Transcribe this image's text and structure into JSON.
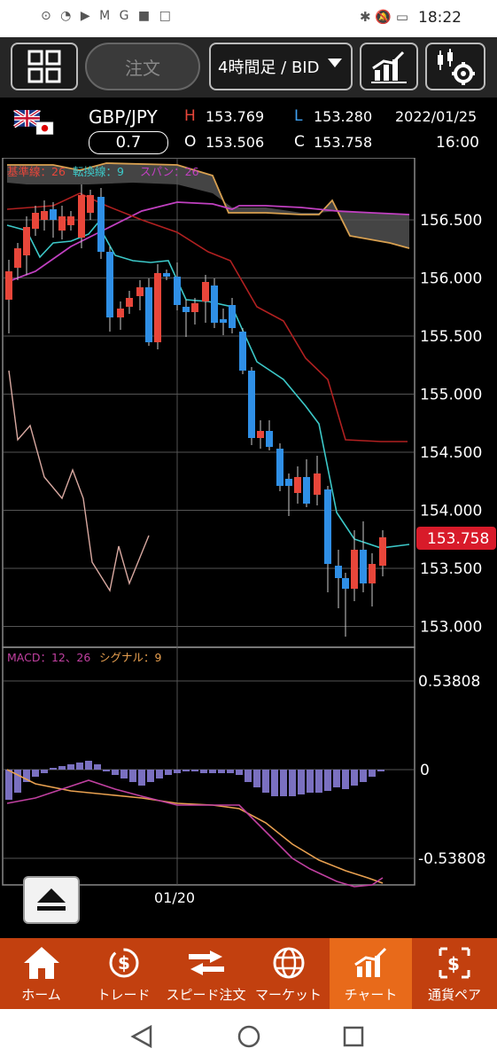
{
  "status": {
    "time": "18:22",
    "left_icons": "⊙ ◔ ▶ M G ■ □"
  },
  "toolbar": {
    "order_label": "注文",
    "period_label": "4時間足 / BID"
  },
  "header": {
    "pair": "GBP/JPY",
    "spread": "0.7",
    "high_label": "H",
    "high": "153.769",
    "low_label": "L",
    "low": "153.280",
    "open_label": "O",
    "open": "153.506",
    "close_label": "C",
    "close": "153.758",
    "date": "2022/01/25",
    "time": "16:00"
  },
  "chart": {
    "ichimoku_legend": {
      "kijun": "基準線：26",
      "tenkan": "転換線：9",
      "span": "スパン：26"
    },
    "price_ticks": [
      "156.500",
      "156.000",
      "155.500",
      "155.000",
      "154.500",
      "154.000",
      "153.500",
      "153.000"
    ],
    "current_price": "153.758",
    "macd_legend": {
      "macd": "MACD：12、26",
      "signal": "シグナル：9"
    },
    "macd_ticks": [
      "0.53808",
      "0",
      "-0.53808"
    ],
    "x_label": "01/20",
    "colors": {
      "up": "#e8463a",
      "down": "#2f8fe6",
      "kijun": "#b02020",
      "tenkan": "#3cc8c8",
      "span_a": "#c040c0",
      "span_b": "#d8a050",
      "chikou": "#d8a8a0",
      "macd": "#c040a0",
      "signal": "#e8a050",
      "hist": "#7a70c0"
    }
  },
  "nav": [
    {
      "label": "ホーム",
      "icon": "home-icon"
    },
    {
      "label": "トレード",
      "icon": "trade-icon"
    },
    {
      "label": "スピード注文",
      "icon": "speed-order-icon"
    },
    {
      "label": "マーケット",
      "icon": "market-icon"
    },
    {
      "label": "チャート",
      "icon": "chart-icon"
    },
    {
      "label": "通貨ペア",
      "icon": "currency-pair-icon"
    }
  ]
}
